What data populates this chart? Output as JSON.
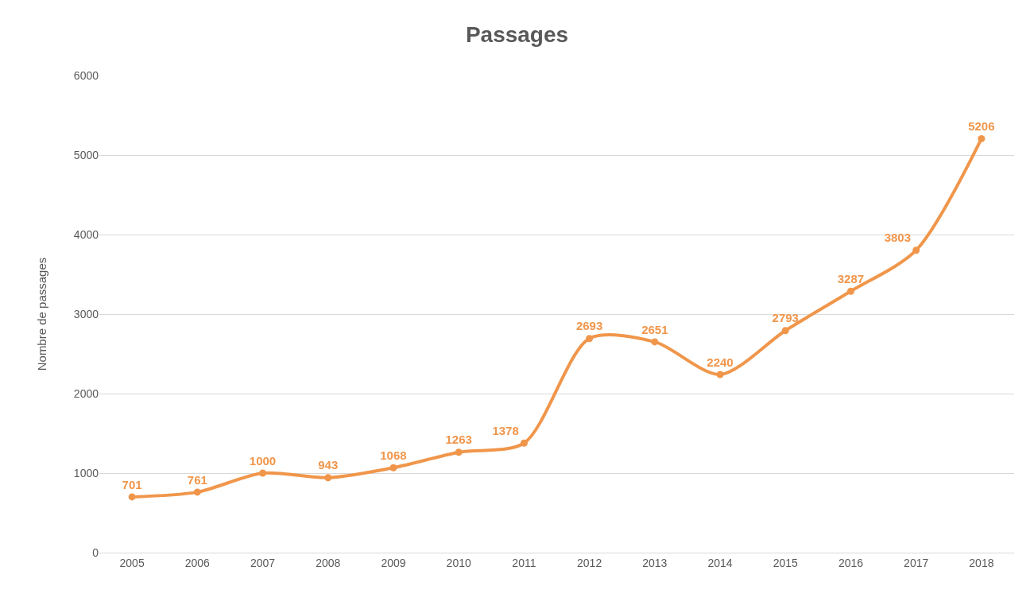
{
  "chart_data": {
    "type": "line",
    "title": "Passages",
    "ylabel": "Nombre de passages",
    "categories": [
      "2005",
      "2006",
      "2007",
      "2008",
      "2009",
      "2010",
      "2011",
      "2012",
      "2013",
      "2014",
      "2015",
      "2016",
      "2017",
      "2018"
    ],
    "series": [
      {
        "color": "#f0964b",
        "values": [
          701,
          761,
          1000,
          943,
          1068,
          1263,
          1378,
          2693,
          2651,
          2240,
          2793,
          3287,
          3803,
          5206
        ]
      }
    ],
    "ylim": [
      0,
      6000
    ],
    "yticks": [
      0,
      1000,
      2000,
      3000,
      4000,
      5000,
      6000
    ],
    "grid": "y",
    "marker": "circle",
    "line_style": "solid",
    "data_labels": true
  }
}
